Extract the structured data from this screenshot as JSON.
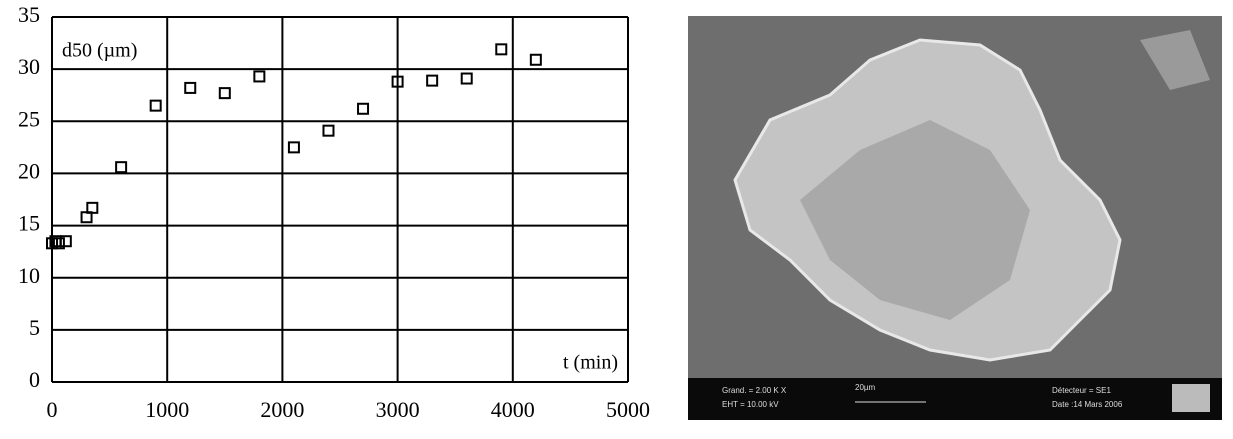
{
  "chart_data": {
    "type": "scatter",
    "y_label": "d50 (µm)",
    "x_label": "t (min)",
    "x": [
      0,
      30,
      60,
      120,
      300,
      350,
      600,
      900,
      1200,
      1500,
      1800,
      2100,
      2400,
      2700,
      3000,
      3300,
      3600,
      3900,
      4200
    ],
    "values": [
      13.3,
      13.5,
      13.3,
      13.5,
      15.8,
      16.7,
      20.6,
      26.5,
      28.2,
      27.7,
      29.3,
      22.5,
      24.1,
      26.2,
      28.8,
      28.9,
      29.1,
      31.9,
      30.9
    ],
    "color": "#000000",
    "xlim": [
      0,
      5000
    ],
    "xticks": [
      0,
      1000,
      2000,
      3000,
      4000,
      5000
    ],
    "ylim": [
      0,
      35
    ],
    "yticks": [
      0,
      5,
      10,
      15,
      20,
      25,
      30,
      35
    ],
    "grid": true
  },
  "micrograph": {
    "magnification": "Grand. = 2.00 K X",
    "voltage": "EHT = 10.00 kV",
    "scale": "20µm",
    "detector": "Détecteur = SE1",
    "date": "Date :14 Mars 2006"
  }
}
